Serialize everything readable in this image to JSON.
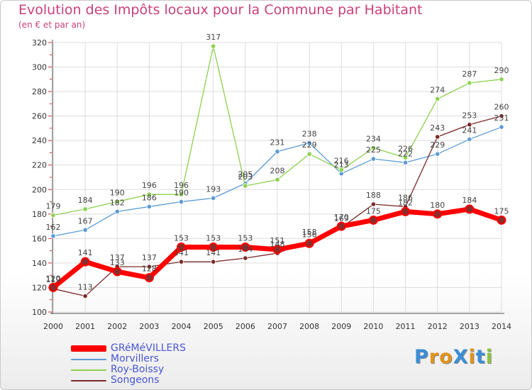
{
  "title": "Evolution des Impôts locaux pour la Commune par Habitant",
  "subtitle": "(en € et par an)",
  "logo": {
    "text": "ProXiti",
    "colors": [
      "#3b8ed8",
      "#e3931a",
      "#e3931a",
      "#3b8ed8",
      "#e3931a",
      "#3b8ed8",
      "#8cc63f"
    ]
  },
  "chart_data": {
    "type": "line",
    "title": "Evolution des Impôts locaux pour la Commune par Habitant",
    "subtitle": "(en € et par an)",
    "x": [
      2000,
      2001,
      2002,
      2003,
      2004,
      2005,
      2006,
      2007,
      2008,
      2009,
      2010,
      2011,
      2012,
      2013,
      2014
    ],
    "ylim": [
      100,
      320
    ],
    "yticks": [
      100,
      120,
      140,
      160,
      180,
      200,
      220,
      240,
      260,
      280,
      300,
      320
    ],
    "grid": true,
    "legend_position": "bottom-left",
    "series": [
      {
        "name": "Morvillers",
        "color": "#5b9bd5",
        "width": 1.3,
        "values": [
          162,
          167,
          182,
          186,
          190,
          193,
          205,
          231,
          238,
          213,
          225,
          222,
          229,
          241,
          251
        ]
      },
      {
        "name": "Roy-Boissy",
        "color": "#8dd14e",
        "width": 1.3,
        "values": [
          179,
          184,
          190,
          196,
          196,
          317,
          203,
          208,
          229,
          216,
          234,
          226,
          274,
          287,
          290
        ]
      },
      {
        "name": "Songeons",
        "color": "#7b2a2a",
        "width": 1.3,
        "values": [
          119,
          113,
          137,
          137,
          141,
          141,
          144,
          148,
          158,
          169,
          188,
          186,
          243,
          253,
          260
        ]
      },
      {
        "name": "GRéMéVILLERS",
        "color": "#ff0000",
        "width": 7,
        "values": [
          120,
          141,
          133,
          128,
          153,
          153,
          153,
          151,
          156,
          170,
          175,
          182,
          180,
          184,
          175
        ]
      }
    ]
  }
}
